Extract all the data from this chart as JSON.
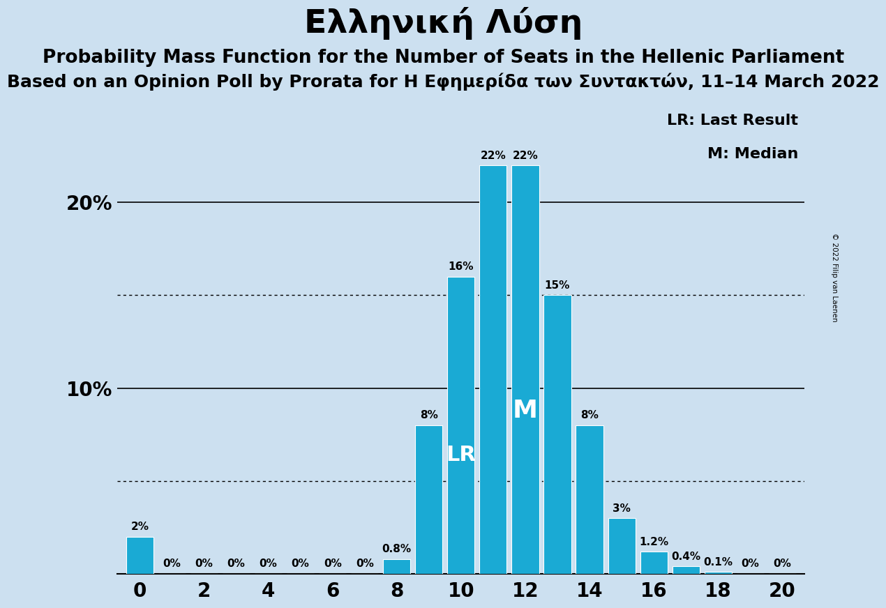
{
  "title": "Ελληνική Λύση",
  "subtitle1": "Probability Mass Function for the Number of Seats in the Hellenic Parliament",
  "subtitle2": "Based on an Opinion Poll by Prorata for Η Εφημερίδα των Συντακτών, 11–14 March 2022",
  "copyright": "© 2022 Filip van Laenen",
  "legend_lr": "LR: Last Result",
  "legend_m": "M: Median",
  "seats": [
    0,
    1,
    2,
    3,
    4,
    5,
    6,
    7,
    8,
    9,
    10,
    11,
    12,
    13,
    14,
    15,
    16,
    17,
    18,
    19,
    20
  ],
  "probabilities": [
    2.0,
    0.0,
    0.0,
    0.0,
    0.0,
    0.0,
    0.0,
    0.0,
    0.8,
    8.0,
    16.0,
    22.0,
    22.0,
    15.0,
    8.0,
    3.0,
    1.2,
    0.4,
    0.1,
    0.0,
    0.0
  ],
  "labels": [
    "2%",
    "0%",
    "0%",
    "0%",
    "0%",
    "0%",
    "0%",
    "0%",
    "0.8%",
    "8%",
    "16%",
    "22%",
    "22%",
    "15%",
    "8%",
    "3%",
    "1.2%",
    "0.4%",
    "0.1%",
    "0%",
    "0%"
  ],
  "bar_color": "#1aaad4",
  "background_color": "#cce0f0",
  "lr_seat": 10,
  "median_seat": 12,
  "solid_gridlines": [
    10,
    20
  ],
  "dotted_gridlines": [
    5,
    15
  ],
  "title_fontsize": 34,
  "subtitle1_fontsize": 19,
  "subtitle2_fontsize": 18,
  "bar_width": 0.85
}
